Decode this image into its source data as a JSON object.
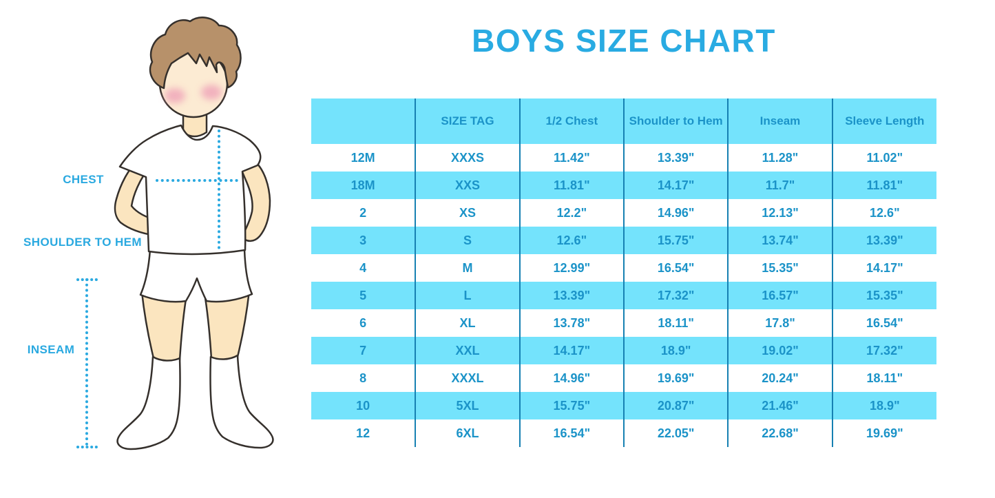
{
  "title": "BOYS SIZE CHART",
  "figure_labels": {
    "chest": "CHEST",
    "shoulder_to_hem": "SHOULDER TO HEM",
    "inseam": "INSEAM"
  },
  "colors": {
    "accent_blue": "#29ABE2",
    "table_text_blue": "#1B93C8",
    "band_cyan": "#74E3FC",
    "divider_blue": "#1680B2",
    "dotted_line_blue": "#2AA9E0",
    "skin": "#FBE5BF",
    "hair_brown": "#B7916A",
    "cheek_pink": "#EFA3B8",
    "outline": "#35302C"
  },
  "chart_data": {
    "type": "table",
    "title": "BOYS SIZE CHART",
    "columns": [
      "",
      "SIZE TAG",
      "1/2 Chest",
      "Shoulder to Hem",
      "Inseam",
      "Sleeve Length"
    ],
    "rows": [
      [
        "12M",
        "XXXS",
        "11.42\"",
        "13.39\"",
        "11.28\"",
        "11.02\""
      ],
      [
        "18M",
        "XXS",
        "11.81\"",
        "14.17\"",
        "11.7\"",
        "11.81\""
      ],
      [
        "2",
        "XS",
        "12.2\"",
        "14.96\"",
        "12.13\"",
        "12.6\""
      ],
      [
        "3",
        "S",
        "12.6\"",
        "15.75\"",
        "13.74\"",
        "13.39\""
      ],
      [
        "4",
        "M",
        "12.99\"",
        "16.54\"",
        "15.35\"",
        "14.17\""
      ],
      [
        "5",
        "L",
        "13.39\"",
        "17.32\"",
        "16.57\"",
        "15.35\""
      ],
      [
        "6",
        "XL",
        "13.78\"",
        "18.11\"",
        "17.8\"",
        "16.54\""
      ],
      [
        "7",
        "XXL",
        "14.17\"",
        "18.9\"",
        "19.02\"",
        "17.32\""
      ],
      [
        "8",
        "XXXL",
        "14.96\"",
        "19.69\"",
        "20.24\"",
        "18.11\""
      ],
      [
        "10",
        "5XL",
        "15.75\"",
        "20.87\"",
        "21.46\"",
        "18.9\""
      ],
      [
        "12",
        "6XL",
        "16.54\"",
        "22.05\"",
        "22.68\"",
        "19.69\""
      ]
    ]
  }
}
